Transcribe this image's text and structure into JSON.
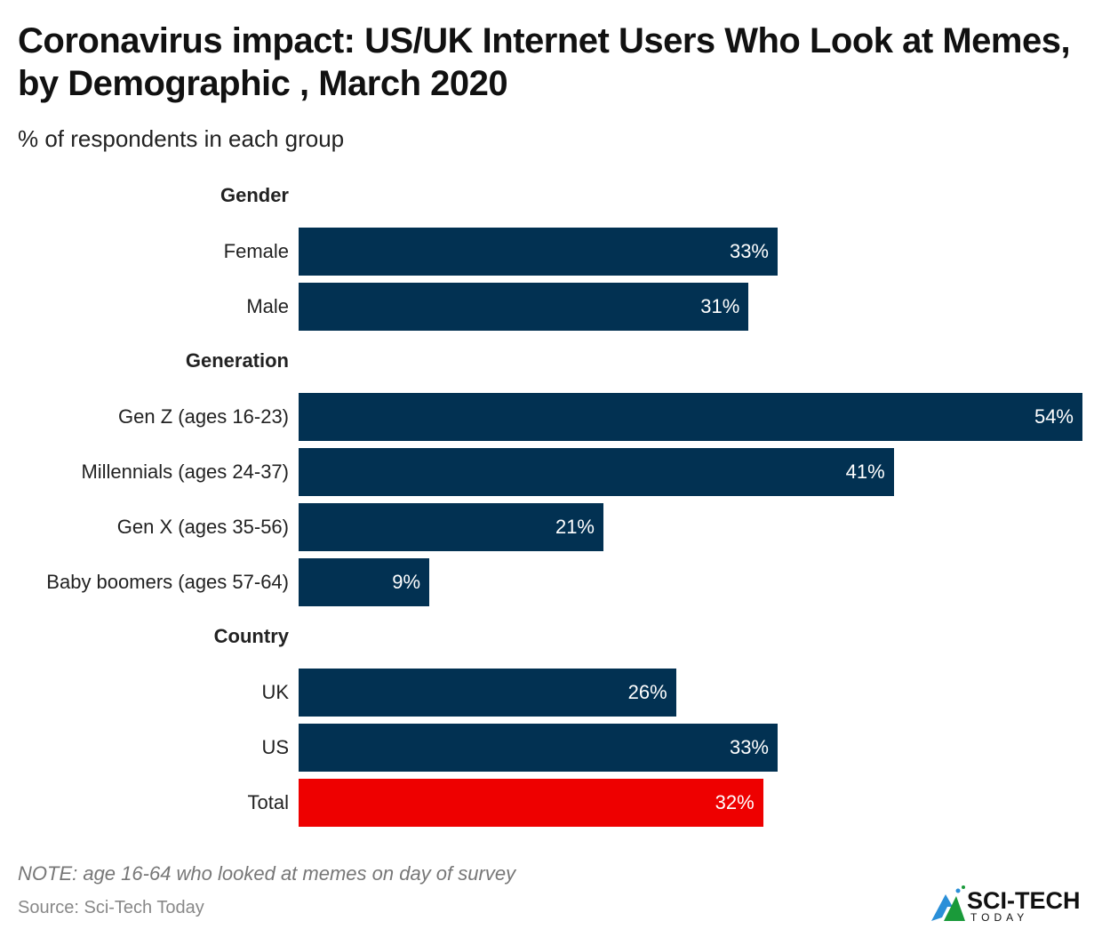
{
  "title": "Coronavirus impact: US/UK Internet Users Who Look at Memes, by Demographic , March 2020",
  "subtitle": "% of respondents in each group",
  "note": "NOTE: age 16-64 who looked at memes on day of survey",
  "source": "Source: Sci-Tech Today",
  "logo": {
    "text": "SCI-TECH",
    "subtext": "TODAY"
  },
  "colors": {
    "bar": "#023152",
    "highlight": "#EE0000"
  },
  "chart_data": {
    "type": "bar",
    "orientation": "horizontal",
    "unit": "%",
    "xlim": [
      0,
      54
    ],
    "groups": [
      {
        "name": "Gender",
        "categories": [
          "Female",
          "Male"
        ],
        "values": [
          33,
          31
        ]
      },
      {
        "name": "Generation",
        "categories": [
          "Gen Z (ages 16-23)",
          "Millennials (ages 24-37)",
          "Gen X (ages 35-56)",
          "Baby boomers (ages 57-64)"
        ],
        "values": [
          54,
          41,
          21,
          9
        ]
      },
      {
        "name": "Country",
        "categories": [
          "UK",
          "US",
          "Total"
        ],
        "values": [
          26,
          33,
          32
        ],
        "highlight": "Total"
      }
    ]
  }
}
